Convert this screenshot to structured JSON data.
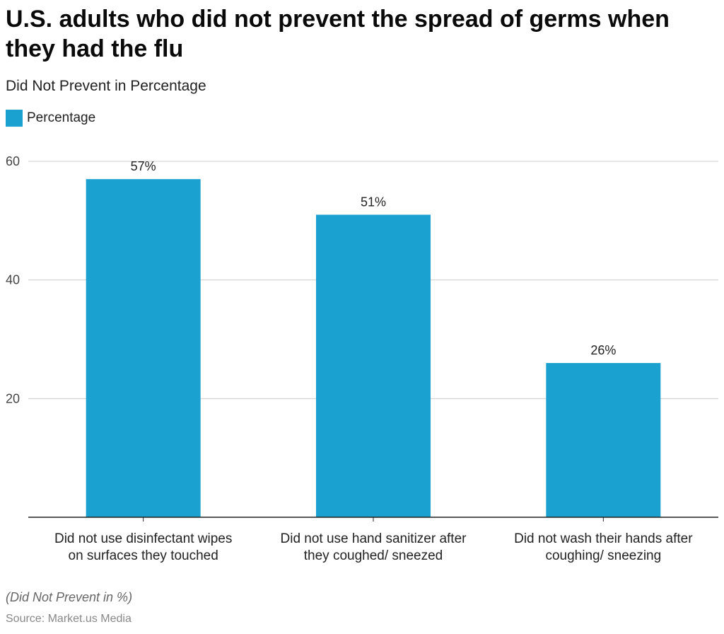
{
  "header": {
    "title": "U.S. adults who did not prevent the spread of germs when they had the flu",
    "subtitle": "Did Not Prevent in Percentage"
  },
  "legend": {
    "label": "Percentage"
  },
  "footer": {
    "note": "(Did Not Prevent in %)",
    "source": "Source: Market.us Media"
  },
  "colors": {
    "bar": "#1ba1cf",
    "grid": "#cccccc",
    "axis": "#222222"
  },
  "chart_data": {
    "type": "bar",
    "title": "U.S. adults who did not prevent the spread of germs when they had the flu",
    "subtitle": "Did Not Prevent in Percentage",
    "categories": [
      [
        "Did not use disinfectant wipes",
        "on surfaces they touched"
      ],
      [
        "Did not use hand sanitizer after",
        "they coughed/ sneezed"
      ],
      [
        "Did not wash their hands after",
        "coughing/ sneezing"
      ]
    ],
    "series": [
      {
        "name": "Percentage",
        "values": [
          57,
          51,
          26
        ],
        "labels": [
          "57%",
          "51%",
          "26%"
        ]
      }
    ],
    "yticks": [
      20,
      40,
      60
    ],
    "ylim": [
      0,
      60
    ],
    "grid": true,
    "legend_position": "top-left"
  }
}
